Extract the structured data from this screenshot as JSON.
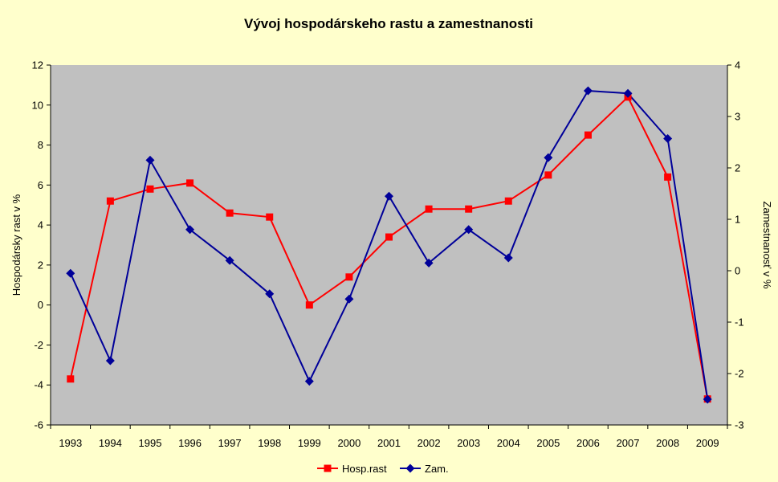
{
  "chart_data": {
    "type": "line",
    "title": "Vývoj hospodárskeho rastu a zamestnanosti",
    "ylabel": "Hospodársky rast v %",
    "y2label": "Zamestnanosť v %",
    "ylim": [
      -6,
      12
    ],
    "y2lim": [
      -3,
      4
    ],
    "yticks": [
      -6,
      -4,
      -2,
      0,
      2,
      4,
      6,
      8,
      10,
      12
    ],
    "y2ticks": [
      -3,
      -2,
      -1,
      0,
      1,
      2,
      3,
      4
    ],
    "categories": [
      "1993",
      "1994",
      "1995",
      "1996",
      "1997",
      "1998",
      "1999",
      "2000",
      "2001",
      "2002",
      "2003",
      "2004",
      "2005",
      "2006",
      "2007",
      "2008",
      "2009"
    ],
    "legend_position": "bottom",
    "grid": false,
    "plot_background": "#C0C0C0",
    "series": [
      {
        "name": "Hosp.rast",
        "axis": "left",
        "color": "#FF0000",
        "marker": "square",
        "values": [
          -3.7,
          5.2,
          5.8,
          6.1,
          4.6,
          4.4,
          0.0,
          1.4,
          3.4,
          4.8,
          4.8,
          5.2,
          6.5,
          8.5,
          10.4,
          6.4,
          -4.7
        ]
      },
      {
        "name": "Zam.",
        "axis": "right",
        "color": "#000099",
        "marker": "diamond",
        "values": [
          -0.05,
          -1.75,
          2.15,
          0.8,
          0.2,
          -0.45,
          -2.15,
          -0.55,
          1.45,
          0.15,
          0.8,
          0.25,
          2.2,
          3.5,
          3.45,
          2.57,
          -2.5
        ]
      }
    ]
  }
}
